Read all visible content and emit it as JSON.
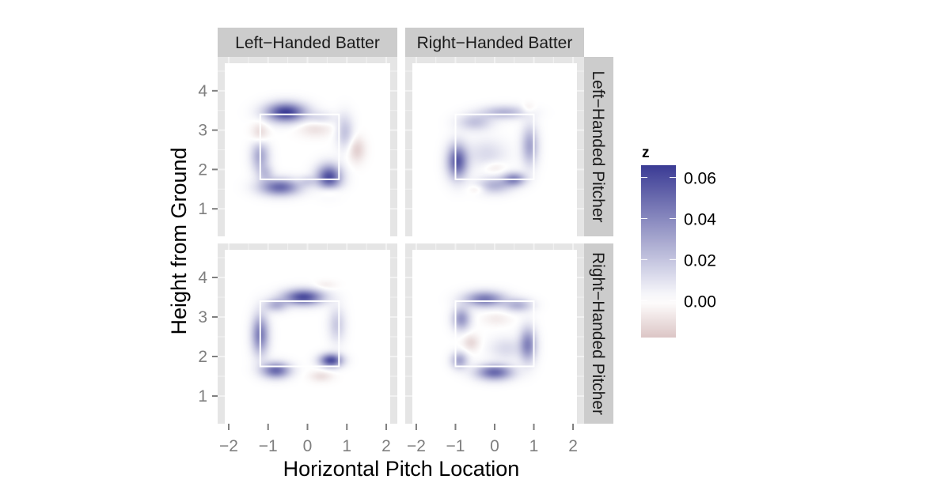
{
  "chart_data": {
    "type": "heatmap",
    "title": "",
    "xlabel": "Horizontal Pitch Location",
    "ylabel": "Height from Ground",
    "xlim": [
      -2.1,
      2.1
    ],
    "ylim": [
      0.3,
      4.7
    ],
    "x_ticks": [
      -2,
      -1,
      0,
      1,
      2
    ],
    "x_tick_labels": [
      "−2",
      "−1",
      "0",
      "1",
      "2"
    ],
    "y_ticks": [
      1,
      2,
      3,
      4
    ],
    "y_tick_labels": [
      "1",
      "2",
      "3",
      "4"
    ],
    "grid": true,
    "facet_columns": [
      "Left−Handed Batter",
      "Right−Handed Batter"
    ],
    "facet_rows": [
      "Left−Handed Pitcher",
      "Right−Handed Pitcher"
    ],
    "strike_zones": [
      {
        "x": [
          -1.2,
          0.8
        ],
        "y": [
          1.75,
          3.4
        ]
      },
      {
        "x": [
          -1.0,
          1.0
        ],
        "y": [
          1.75,
          3.4
        ]
      },
      {
        "x": [
          -1.2,
          0.8
        ],
        "y": [
          1.75,
          3.4
        ]
      },
      {
        "x": [
          -1.0,
          1.0
        ],
        "y": [
          1.75,
          3.4
        ]
      }
    ],
    "panels": [
      {
        "row": "Left−Handed Pitcher",
        "col": "Left−Handed Batter",
        "blobs": [
          {
            "x": -0.55,
            "y": 3.45,
            "sx": 0.35,
            "sy": 0.17,
            "z": 0.065
          },
          {
            "x": -0.7,
            "y": 1.55,
            "sx": 0.35,
            "sy": 0.15,
            "z": 0.05
          },
          {
            "x": 0.55,
            "y": 1.8,
            "sx": 0.22,
            "sy": 0.22,
            "z": 0.06
          },
          {
            "x": -1.2,
            "y": 2.35,
            "sx": 0.16,
            "sy": 0.3,
            "z": 0.03
          },
          {
            "x": 0.95,
            "y": 2.95,
            "sx": 0.15,
            "sy": 0.3,
            "z": 0.02
          },
          {
            "x": 0.35,
            "y": 3.3,
            "sx": 0.25,
            "sy": 0.12,
            "z": 0.012
          },
          {
            "x": -1.05,
            "y": 1.9,
            "sx": 0.14,
            "sy": 0.14,
            "z": 0.015
          },
          {
            "x": 0.0,
            "y": 1.7,
            "sx": 0.15,
            "sy": 0.1,
            "z": 0.012
          },
          {
            "x": -1.2,
            "y": 2.9,
            "sx": 0.15,
            "sy": 0.2,
            "z": -0.015
          },
          {
            "x": 1.25,
            "y": 2.5,
            "sx": 0.15,
            "sy": 0.22,
            "z": -0.015
          },
          {
            "x": 0.2,
            "y": 3.05,
            "sx": 0.3,
            "sy": 0.15,
            "z": -0.01
          },
          {
            "x": 0.55,
            "y": 1.45,
            "sx": 0.2,
            "sy": 0.1,
            "z": -0.012
          }
        ]
      },
      {
        "row": "Left−Handed Pitcher",
        "col": "Right−Handed Batter",
        "blobs": [
          {
            "x": -0.95,
            "y": 2.2,
            "sx": 0.18,
            "sy": 0.3,
            "z": 0.055
          },
          {
            "x": 0.0,
            "y": 1.6,
            "sx": 0.3,
            "sy": 0.15,
            "z": 0.025
          },
          {
            "x": 0.25,
            "y": 3.45,
            "sx": 0.4,
            "sy": 0.12,
            "z": 0.025
          },
          {
            "x": 0.9,
            "y": 2.6,
            "sx": 0.15,
            "sy": 0.35,
            "z": 0.03
          },
          {
            "x": -0.5,
            "y": 3.2,
            "sx": 0.3,
            "sy": 0.15,
            "z": 0.02
          },
          {
            "x": 0.5,
            "y": 1.75,
            "sx": 0.2,
            "sy": 0.12,
            "z": 0.04
          },
          {
            "x": -0.2,
            "y": 2.4,
            "sx": 0.35,
            "sy": 0.25,
            "z": 0.012
          },
          {
            "x": 0.0,
            "y": 2.05,
            "sx": 0.2,
            "sy": 0.12,
            "z": -0.008
          },
          {
            "x": 0.85,
            "y": 3.55,
            "sx": 0.12,
            "sy": 0.1,
            "z": -0.008
          },
          {
            "x": -0.45,
            "y": 1.5,
            "sx": 0.15,
            "sy": 0.08,
            "z": -0.008
          }
        ]
      },
      {
        "row": "Right−Handed Pitcher",
        "col": "Left−Handed Batter",
        "blobs": [
          {
            "x": -0.1,
            "y": 3.5,
            "sx": 0.35,
            "sy": 0.14,
            "z": 0.06
          },
          {
            "x": -1.2,
            "y": 2.55,
            "sx": 0.15,
            "sy": 0.35,
            "z": 0.045
          },
          {
            "x": -0.8,
            "y": 1.65,
            "sx": 0.25,
            "sy": 0.14,
            "z": 0.05
          },
          {
            "x": 0.6,
            "y": 1.9,
            "sx": 0.2,
            "sy": 0.12,
            "z": 0.06
          },
          {
            "x": 0.75,
            "y": 2.8,
            "sx": 0.15,
            "sy": 0.3,
            "z": 0.018
          },
          {
            "x": -0.8,
            "y": 3.3,
            "sx": 0.2,
            "sy": 0.12,
            "z": 0.025
          },
          {
            "x": 0.35,
            "y": 1.5,
            "sx": 0.2,
            "sy": 0.1,
            "z": -0.01
          },
          {
            "x": 0.45,
            "y": 3.8,
            "sx": 0.2,
            "sy": 0.08,
            "z": -0.006
          }
        ]
      },
      {
        "row": "Right−Handed Pitcher",
        "col": "Right−Handed Batter",
        "blobs": [
          {
            "x": 0.0,
            "y": 1.6,
            "sx": 0.32,
            "sy": 0.14,
            "z": 0.05
          },
          {
            "x": -0.25,
            "y": 3.45,
            "sx": 0.35,
            "sy": 0.14,
            "z": 0.045
          },
          {
            "x": 0.6,
            "y": 3.3,
            "sx": 0.25,
            "sy": 0.12,
            "z": 0.025
          },
          {
            "x": 0.85,
            "y": 2.3,
            "sx": 0.15,
            "sy": 0.3,
            "z": 0.04
          },
          {
            "x": -0.85,
            "y": 2.95,
            "sx": 0.16,
            "sy": 0.2,
            "z": 0.035
          },
          {
            "x": -0.9,
            "y": 1.9,
            "sx": 0.15,
            "sy": 0.15,
            "z": 0.03
          },
          {
            "x": 0.3,
            "y": 2.2,
            "sx": 0.3,
            "sy": 0.2,
            "z": 0.012
          },
          {
            "x": -0.6,
            "y": 2.35,
            "sx": 0.15,
            "sy": 0.15,
            "z": -0.012
          },
          {
            "x": 0.05,
            "y": 2.95,
            "sx": 0.25,
            "sy": 0.12,
            "z": -0.006
          }
        ]
      }
    ],
    "legend": {
      "title": "z",
      "placement": "right",
      "min": -0.018,
      "max": 0.066,
      "breaks": [
        0.0,
        0.02,
        0.04,
        0.06
      ],
      "labels": [
        "0.00",
        "0.02",
        "0.04",
        "0.06"
      ],
      "low_color": "#dcc5c5",
      "mid_color": "#ffffff",
      "high_color": "#3a3b94"
    },
    "colors": {
      "panel_background": "#e5e5e5",
      "grid_line": "#f2f2f2",
      "strip_background": "#cccccc",
      "strike_zone": "#ffffff",
      "tick_label": "#7f7f7f"
    }
  }
}
